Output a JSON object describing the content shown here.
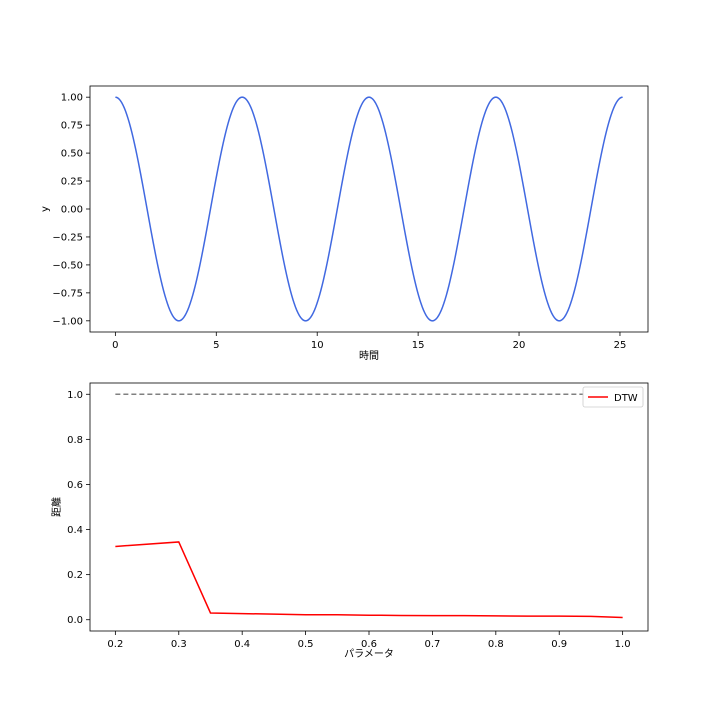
{
  "chart_data": [
    {
      "type": "line",
      "title": "",
      "xlabel": "時間",
      "ylabel": "y",
      "xlim": [
        -1.257,
        26.389
      ],
      "ylim": [
        -1.1,
        1.1
      ],
      "xticks": [
        0,
        5,
        10,
        15,
        20,
        25
      ],
      "yticks": [
        -1.0,
        -0.75,
        -0.5,
        -0.25,
        0.0,
        0.25,
        0.5,
        0.75,
        1.0
      ],
      "xtick_labels": [
        "0",
        "5",
        "10",
        "15",
        "20",
        "25"
      ],
      "ytick_labels": [
        "−1.00",
        "−0.75",
        "−0.50",
        "−0.25",
        "0.00",
        "0.25",
        "0.50",
        "0.75",
        "1.00"
      ],
      "grid": false,
      "series": [
        {
          "function": "cos(x)",
          "x_start": 0,
          "x_end": 25.133,
          "samples": 400,
          "color": "#4169e1"
        }
      ]
    },
    {
      "type": "line",
      "title": "",
      "xlabel": "パラメータ",
      "ylabel": "距離",
      "xlim": [
        0.16,
        1.04
      ],
      "ylim": [
        -0.05,
        1.05
      ],
      "xticks": [
        0.2,
        0.3,
        0.4,
        0.5,
        0.6,
        0.7,
        0.8,
        0.9,
        1.0
      ],
      "yticks": [
        0.0,
        0.2,
        0.4,
        0.6,
        0.8,
        1.0
      ],
      "xtick_labels": [
        "0.2",
        "0.3",
        "0.4",
        "0.5",
        "0.6",
        "0.7",
        "0.8",
        "0.9",
        "1.0"
      ],
      "ytick_labels": [
        "0.0",
        "0.2",
        "0.4",
        "0.6",
        "0.8",
        "1.0"
      ],
      "grid": false,
      "legend": {
        "placement": "top-right",
        "entries": [
          "DTW"
        ]
      },
      "series": [
        {
          "name": "DTW",
          "color": "#ff0000",
          "x": [
            0.2,
            0.3,
            0.35,
            0.4,
            0.45,
            0.5,
            0.55,
            0.6,
            0.65,
            0.7,
            0.75,
            0.8,
            0.85,
            0.9,
            0.95,
            1.0
          ],
          "values": [
            0.325,
            0.345,
            0.03,
            0.027,
            0.025,
            0.022,
            0.022,
            0.02,
            0.019,
            0.018,
            0.018,
            0.017,
            0.016,
            0.016,
            0.015,
            0.01
          ]
        },
        {
          "style": "dashed",
          "color": "#808080",
          "x": [
            0.2,
            1.0
          ],
          "values": [
            1.0,
            1.0
          ]
        }
      ]
    }
  ]
}
